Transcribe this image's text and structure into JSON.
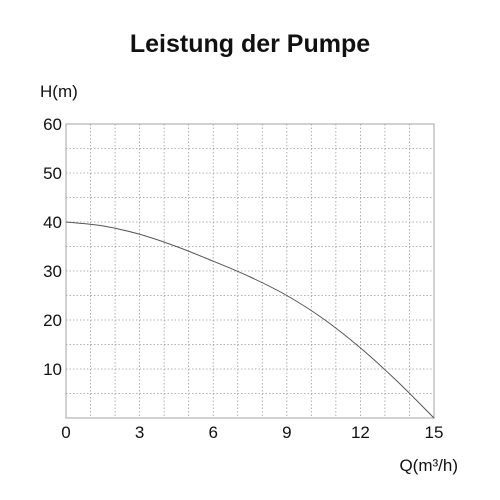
{
  "chart_data": {
    "type": "line",
    "title": "Leistung der Pumpe",
    "xlabel": "Q(m³/h)",
    "ylabel": "H(m)",
    "xlim": [
      0,
      15
    ],
    "ylim": [
      0,
      60
    ],
    "x_ticks": [
      "0",
      "3",
      "6",
      "9",
      "12",
      "15"
    ],
    "y_ticks": [
      "10",
      "20",
      "30",
      "40",
      "50",
      "60"
    ],
    "grid": true,
    "series": [
      {
        "x": [
          0,
          1.5,
          3,
          4.5,
          6,
          7.5,
          9,
          10.5,
          12,
          13.5,
          15
        ],
        "y": [
          40,
          39.2,
          37.5,
          35,
          32,
          28.8,
          25,
          20.2,
          14.3,
          7.5,
          0
        ],
        "color": "#555555"
      }
    ]
  }
}
